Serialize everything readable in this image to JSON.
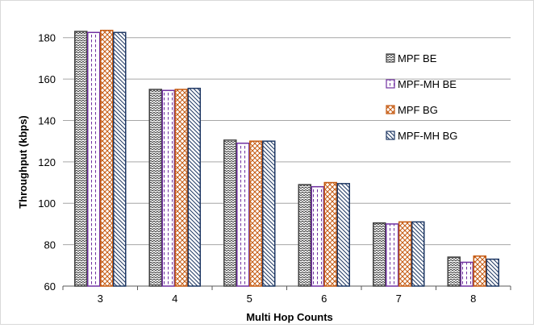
{
  "chart_data": {
    "type": "bar",
    "title": "",
    "xlabel": "Multi Hop Counts",
    "ylabel": "Throughput (kbps)",
    "ylim": [
      60,
      190
    ],
    "yticks": [
      60,
      80,
      100,
      120,
      140,
      160,
      180
    ],
    "grid": true,
    "legend_position": "right",
    "categories": [
      "3",
      "4",
      "5",
      "6",
      "7",
      "8"
    ],
    "series": [
      {
        "name": "MPF BE",
        "values": [
          183,
          155,
          130.5,
          109,
          90.5,
          74
        ],
        "color": "#404040",
        "pattern": "zigzag"
      },
      {
        "name": "MPF-MH BE",
        "values": [
          182.5,
          154.5,
          129,
          108,
          90,
          71.5
        ],
        "color": "#7030a0",
        "pattern": "dashed-vertical"
      },
      {
        "name": "MPF BG",
        "values": [
          183.5,
          155,
          130,
          110,
          91,
          74.5
        ],
        "color": "#c55a11",
        "pattern": "crosshatch"
      },
      {
        "name": "MPF-MH BG",
        "values": [
          182.5,
          155.5,
          130,
          109.5,
          91,
          73
        ],
        "color": "#1f3864",
        "pattern": "diagonal"
      }
    ]
  }
}
